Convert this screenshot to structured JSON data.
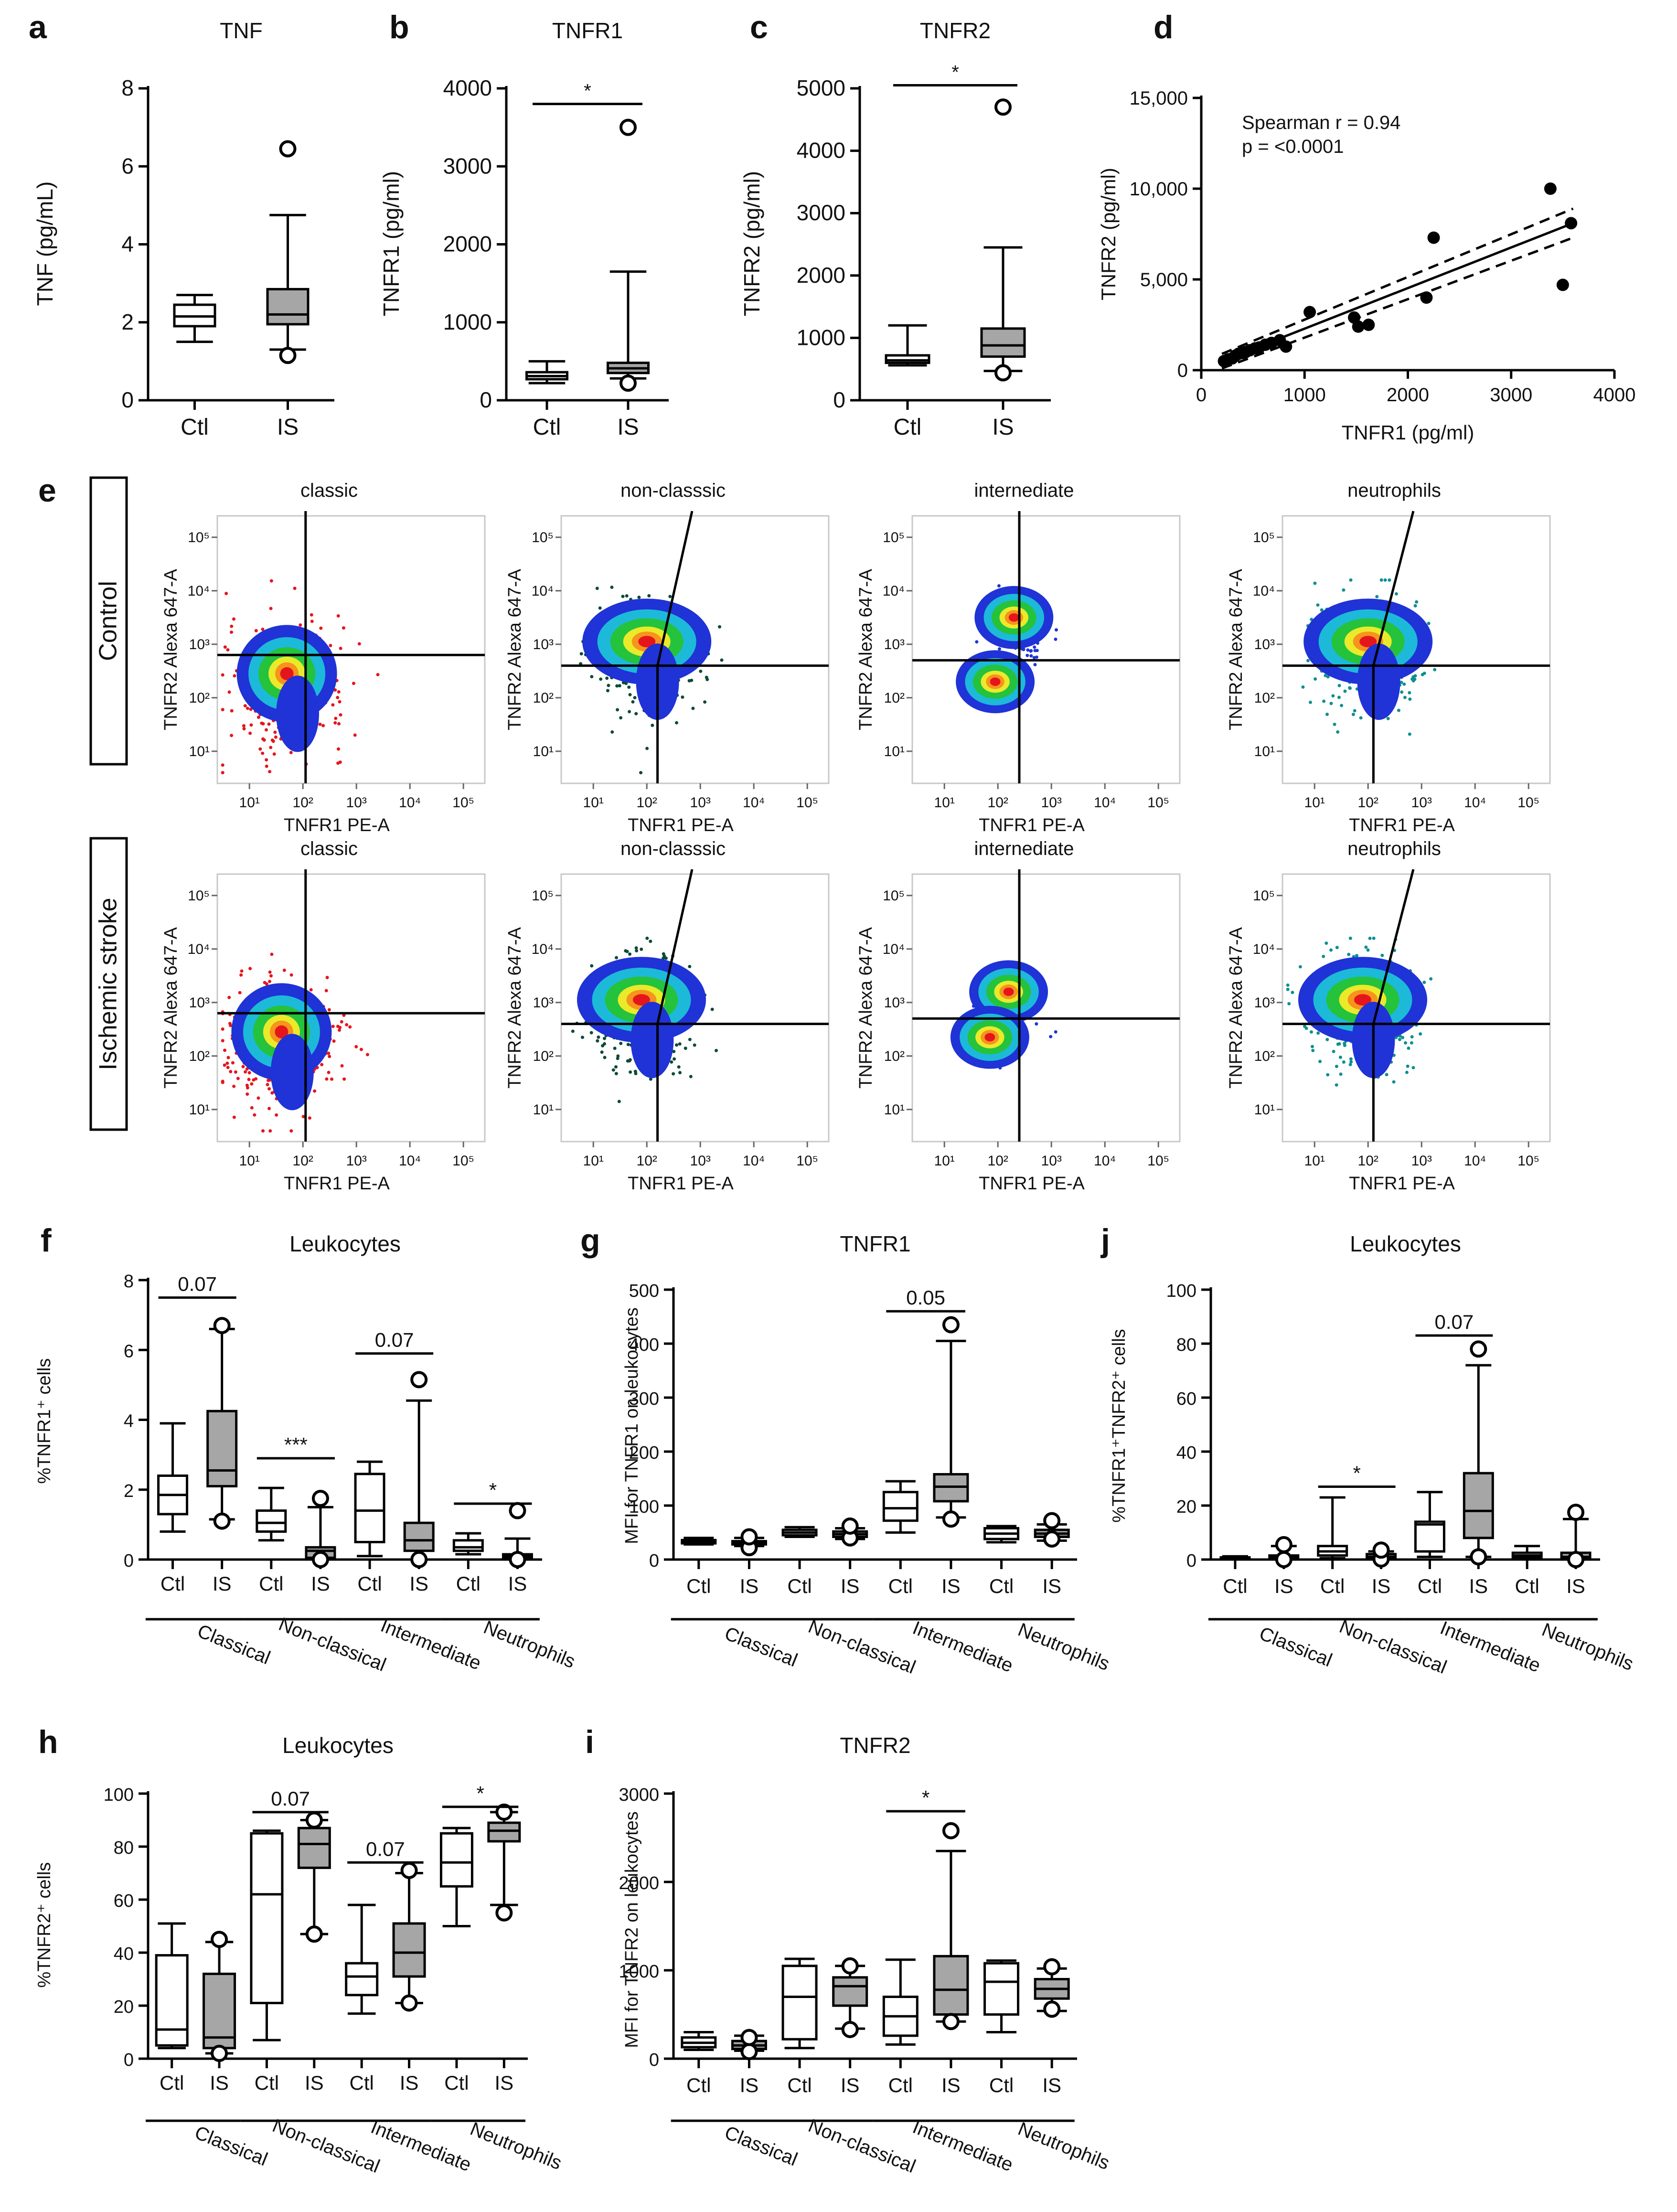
{
  "figure": {
    "colors": {
      "ink": "#000000",
      "grey_box": "#a6a6a6",
      "white_box": "#ffffff",
      "red": "#e4161c",
      "teal": "#0f8f8f",
      "darkgreen": "#0c4a38",
      "blue": "#1f33d6",
      "cyan": "#1db9d9",
      "green": "#25c23c",
      "yellow": "#eaea2a",
      "orange": "#f7941d"
    }
  },
  "chart_data": [
    {
      "id": "a",
      "type": "box",
      "letter": "a",
      "title": "TNF",
      "ylabel": "TNF (pg/mL)",
      "ylim": [
        0,
        8
      ],
      "yticks": [
        "0",
        "2",
        "4",
        "6",
        "8"
      ],
      "categories": [
        "Ctl",
        "IS"
      ],
      "boxes": [
        {
          "name": "Ctl",
          "min": 1.5,
          "q1": 1.9,
          "median": 2.15,
          "q3": 2.45,
          "max": 2.7,
          "fill": "white",
          "outliers": []
        },
        {
          "name": "IS",
          "min": 1.3,
          "q1": 1.95,
          "median": 2.2,
          "q3": 2.85,
          "max": 4.75,
          "fill": "grey",
          "outliers": [
            1.15,
            6.45
          ]
        }
      ]
    },
    {
      "id": "b",
      "type": "box",
      "letter": "b",
      "title": "TNFR1",
      "ylabel": "TNFR1 (pg/ml)",
      "ylim": [
        0,
        4000
      ],
      "yticks": [
        "0",
        "1000",
        "2000",
        "3000",
        "4000"
      ],
      "categories": [
        "Ctl",
        "IS"
      ],
      "sig": [
        {
          "from": 0,
          "to": 1,
          "label": "*",
          "y": 3800
        }
      ],
      "boxes": [
        {
          "name": "Ctl",
          "min": 220,
          "q1": 270,
          "median": 310,
          "q3": 360,
          "max": 500,
          "fill": "white",
          "outliers": []
        },
        {
          "name": "IS",
          "min": 280,
          "q1": 350,
          "median": 410,
          "q3": 480,
          "max": 1650,
          "fill": "grey",
          "outliers": [
            220,
            3500
          ]
        }
      ]
    },
    {
      "id": "c",
      "type": "box",
      "letter": "c",
      "title": "TNFR2",
      "ylabel": "TNFR2 (pg/ml)",
      "ylim": [
        0,
        5000
      ],
      "yticks": [
        "0",
        "1000",
        "2000",
        "3000",
        "4000",
        "5000"
      ],
      "categories": [
        "Ctl",
        "IS"
      ],
      "sig": [
        {
          "from": 0,
          "to": 1,
          "label": "*",
          "y": 5050
        }
      ],
      "boxes": [
        {
          "name": "Ctl",
          "min": 560,
          "q1": 600,
          "median": 640,
          "q3": 720,
          "max": 1200,
          "fill": "white",
          "outliers": []
        },
        {
          "name": "IS",
          "min": 470,
          "q1": 700,
          "median": 880,
          "q3": 1150,
          "max": 2450,
          "fill": "grey",
          "outliers": [
            440,
            4700
          ]
        }
      ]
    },
    {
      "id": "d",
      "type": "scatter",
      "letter": "d",
      "xlabel": "TNFR1 (pg/ml)",
      "ylabel": "TNFR2 (pg/ml)",
      "xlim": [
        0,
        4000
      ],
      "ylim": [
        0,
        15000
      ],
      "xticks": [
        "0",
        "1000",
        "2000",
        "3000",
        "4000"
      ],
      "yticks": [
        "0",
        "5,000",
        "10,000",
        "15,000"
      ],
      "annotation": [
        "Spearman r = 0.94",
        "p = <0.0001"
      ],
      "points": [
        [
          220,
          500
        ],
        [
          260,
          600
        ],
        [
          300,
          650
        ],
        [
          330,
          800
        ],
        [
          360,
          900
        ],
        [
          400,
          950
        ],
        [
          430,
          1000
        ],
        [
          470,
          1100
        ],
        [
          520,
          1200
        ],
        [
          560,
          1250
        ],
        [
          620,
          1400
        ],
        [
          680,
          1500
        ],
        [
          760,
          1650
        ],
        [
          820,
          1300
        ],
        [
          1050,
          3200
        ],
        [
          1480,
          2900
        ],
        [
          1520,
          2400
        ],
        [
          1620,
          2500
        ],
        [
          2180,
          4000
        ],
        [
          2250,
          7300
        ],
        [
          3380,
          10000
        ],
        [
          3500,
          4700
        ],
        [
          3580,
          8100
        ]
      ],
      "fit": {
        "x": [
          200,
          3600
        ],
        "y": [
          500,
          8100
        ]
      },
      "ci_upper": {
        "x": [
          200,
          3600
        ],
        "y": [
          900,
          8900
        ]
      },
      "ci_lower": {
        "x": [
          200,
          3600
        ],
        "y": [
          100,
          7300
        ]
      }
    },
    {
      "id": "f",
      "type": "box",
      "letter": "f",
      "title": "Leukocytes",
      "ylabel": "%TNFR1⁺ cells",
      "ylim": [
        0,
        8
      ],
      "yticks": [
        "0",
        "2",
        "4",
        "6",
        "8"
      ],
      "categories": [
        "Ctl",
        "IS",
        "Ctl",
        "IS",
        "Ctl",
        "IS",
        "Ctl",
        "IS"
      ],
      "groups": [
        "Classical",
        "Non-classical",
        "Intermediate",
        "Neutrophils"
      ],
      "sig": [
        {
          "from": 0,
          "to": 1,
          "label": "0.07",
          "y": 7.5
        },
        {
          "from": 2,
          "to": 3,
          "label": "***",
          "y": 2.9
        },
        {
          "from": 4,
          "to": 5,
          "label": "0.07",
          "y": 5.9
        },
        {
          "from": 6,
          "to": 7,
          "label": "*",
          "y": 1.6
        }
      ],
      "boxes": [
        {
          "min": 0.8,
          "q1": 1.3,
          "median": 1.85,
          "q3": 2.4,
          "max": 3.9,
          "fill": "white",
          "outliers": []
        },
        {
          "min": 1.15,
          "q1": 2.1,
          "median": 2.55,
          "q3": 4.25,
          "max": 6.6,
          "fill": "grey",
          "outliers": [
            1.1,
            6.7
          ]
        },
        {
          "min": 0.55,
          "q1": 0.8,
          "median": 1.05,
          "q3": 1.4,
          "max": 2.05,
          "fill": "white",
          "outliers": []
        },
        {
          "min": 0.0,
          "q1": 0.05,
          "median": 0.25,
          "q3": 0.35,
          "max": 1.5,
          "fill": "grey",
          "outliers": [
            0.0,
            1.75
          ]
        },
        {
          "min": 0.1,
          "q1": 0.5,
          "median": 1.4,
          "q3": 2.45,
          "max": 2.8,
          "fill": "white",
          "outliers": []
        },
        {
          "min": 0.0,
          "q1": 0.25,
          "median": 0.55,
          "q3": 1.05,
          "max": 4.55,
          "fill": "grey",
          "outliers": [
            0.0,
            5.15
          ]
        },
        {
          "min": 0.15,
          "q1": 0.25,
          "median": 0.35,
          "q3": 0.55,
          "max": 0.75,
          "fill": "white",
          "outliers": []
        },
        {
          "min": 0.0,
          "q1": 0.05,
          "median": 0.1,
          "q3": 0.15,
          "max": 0.6,
          "fill": "grey",
          "outliers": [
            0.0,
            1.4
          ]
        }
      ]
    },
    {
      "id": "g",
      "type": "box",
      "letter": "g",
      "title": "TNFR1",
      "ylabel": "MFI for TNFR1 on leukocytes",
      "ylim": [
        0,
        500
      ],
      "yticks": [
        "0",
        "100",
        "200",
        "300",
        "400",
        "500"
      ],
      "categories": [
        "Ctl",
        "IS",
        "Ctl",
        "IS",
        "Ctl",
        "IS",
        "Ctl",
        "IS"
      ],
      "groups": [
        "Classical",
        "Non-classical",
        "Intermediate",
        "Neutrophils"
      ],
      "sig": [
        {
          "from": 4,
          "to": 5,
          "label": "0.05",
          "y": 460
        }
      ],
      "boxes": [
        {
          "min": 28,
          "q1": 30,
          "median": 33,
          "q3": 36,
          "max": 40,
          "fill": "white",
          "outliers": []
        },
        {
          "min": 25,
          "q1": 28,
          "median": 31,
          "q3": 34,
          "max": 40,
          "fill": "grey",
          "outliers": [
            22,
            42
          ]
        },
        {
          "min": 42,
          "q1": 45,
          "median": 50,
          "q3": 55,
          "max": 60,
          "fill": "white",
          "outliers": []
        },
        {
          "min": 38,
          "q1": 42,
          "median": 47,
          "q3": 52,
          "max": 58,
          "fill": "grey",
          "outliers": [
            40,
            62
          ]
        },
        {
          "min": 50,
          "q1": 72,
          "median": 95,
          "q3": 125,
          "max": 145,
          "fill": "white",
          "outliers": []
        },
        {
          "min": 78,
          "q1": 108,
          "median": 135,
          "q3": 158,
          "max": 405,
          "fill": "grey",
          "outliers": [
            75,
            435
          ]
        },
        {
          "min": 32,
          "q1": 38,
          "median": 48,
          "q3": 58,
          "max": 62,
          "fill": "white",
          "outliers": []
        },
        {
          "min": 35,
          "q1": 42,
          "median": 48,
          "q3": 55,
          "max": 65,
          "fill": "grey",
          "outliers": [
            38,
            72
          ]
        }
      ]
    },
    {
      "id": "j",
      "type": "box",
      "letter": "j",
      "title": "Leukocytes",
      "ylabel": "%TNFR1⁺TNFR2⁺ cells",
      "ylim": [
        0,
        100
      ],
      "yticks": [
        "0",
        "20",
        "40",
        "60",
        "80",
        "100"
      ],
      "categories": [
        "Ctl",
        "IS",
        "Ctl",
        "IS",
        "Ctl",
        "IS",
        "Ctl",
        "IS"
      ],
      "groups": [
        "Classical",
        "Non-classical",
        "Intermediate",
        "Neutrophils"
      ],
      "sig": [
        {
          "from": 2,
          "to": 3,
          "label": "*",
          "y": 27
        },
        {
          "from": 4,
          "to": 5,
          "label": "0.07",
          "y": 83
        }
      ],
      "boxes": [
        {
          "min": 0,
          "q1": 0.2,
          "median": 0.5,
          "q3": 0.8,
          "max": 1.2,
          "fill": "white",
          "outliers": []
        },
        {
          "min": 0,
          "q1": 0.3,
          "median": 0.7,
          "q3": 1.5,
          "max": 5,
          "fill": "grey",
          "outliers": [
            0,
            5.5
          ]
        },
        {
          "min": 0.5,
          "q1": 1.5,
          "median": 3,
          "q3": 5,
          "max": 23,
          "fill": "white",
          "outliers": []
        },
        {
          "min": 0,
          "q1": 0.5,
          "median": 1,
          "q3": 2,
          "max": 3,
          "fill": "grey",
          "outliers": [
            0.2,
            3.5
          ]
        },
        {
          "min": 1,
          "q1": 3,
          "median": 13,
          "q3": 14,
          "max": 25,
          "fill": "white",
          "outliers": []
        },
        {
          "min": 1,
          "q1": 8,
          "median": 18,
          "q3": 32,
          "max": 72,
          "fill": "grey",
          "outliers": [
            1,
            78
          ]
        },
        {
          "min": 0.3,
          "q1": 0.8,
          "median": 1.5,
          "q3": 2.5,
          "max": 5,
          "fill": "white",
          "outliers": []
        },
        {
          "min": 0,
          "q1": 0.5,
          "median": 1,
          "q3": 2.5,
          "max": 15,
          "fill": "grey",
          "outliers": [
            0,
            17.5
          ]
        }
      ]
    },
    {
      "id": "h",
      "type": "box",
      "letter": "h",
      "title": "Leukocytes",
      "ylabel": "%TNFR2⁺ cells",
      "ylim": [
        0,
        100
      ],
      "yticks": [
        "0",
        "20",
        "40",
        "60",
        "80",
        "100"
      ],
      "categories": [
        "Ctl",
        "IS",
        "Ctl",
        "IS",
        "Ctl",
        "IS",
        "Ctl",
        "IS"
      ],
      "groups": [
        "Classical",
        "Non-classical",
        "Intermediate",
        "Neutrophils"
      ],
      "sig": [
        {
          "from": 2,
          "to": 3,
          "label": "0.07",
          "y": 93
        },
        {
          "from": 4,
          "to": 5,
          "label": "0.07",
          "y": 74
        },
        {
          "from": 6,
          "to": 7,
          "label": "*",
          "y": 95
        }
      ],
      "boxes": [
        {
          "min": 4,
          "q1": 5,
          "median": 11,
          "q3": 39,
          "max": 51,
          "fill": "white",
          "outliers": []
        },
        {
          "min": 2,
          "q1": 4,
          "median": 8,
          "q3": 32,
          "max": 44,
          "fill": "grey",
          "outliers": [
            2,
            45
          ]
        },
        {
          "min": 7,
          "q1": 21,
          "median": 62,
          "q3": 85,
          "max": 86,
          "fill": "white",
          "outliers": []
        },
        {
          "min": 47,
          "q1": 72,
          "median": 81,
          "q3": 87,
          "max": 90,
          "fill": "grey",
          "outliers": [
            47,
            90
          ]
        },
        {
          "min": 17,
          "q1": 24,
          "median": 31,
          "q3": 36,
          "max": 58,
          "fill": "white",
          "outliers": []
        },
        {
          "min": 21,
          "q1": 31,
          "median": 40,
          "q3": 51,
          "max": 70,
          "fill": "grey",
          "outliers": [
            21,
            71
          ]
        },
        {
          "min": 50,
          "q1": 65,
          "median": 74,
          "q3": 85,
          "max": 87,
          "fill": "white",
          "outliers": []
        },
        {
          "min": 58,
          "q1": 82,
          "median": 86,
          "q3": 89,
          "max": 93,
          "fill": "grey",
          "outliers": [
            55,
            93
          ]
        }
      ]
    },
    {
      "id": "i",
      "type": "box",
      "letter": "i",
      "title": "TNFR2",
      "ylabel": "MFI for TNFR2 on leukocytes",
      "ylim": [
        0,
        3000
      ],
      "yticks": [
        "0",
        "1000",
        "2000",
        "3000"
      ],
      "categories": [
        "Ctl",
        "IS",
        "Ctl",
        "IS",
        "Ctl",
        "IS",
        "Ctl",
        "IS"
      ],
      "groups": [
        "Classical",
        "Non-classical",
        "Intermediate",
        "Neutrophils"
      ],
      "sig": [
        {
          "from": 4,
          "to": 5,
          "label": "*",
          "y": 2800
        }
      ],
      "boxes": [
        {
          "min": 100,
          "q1": 130,
          "median": 180,
          "q3": 240,
          "max": 300,
          "fill": "white",
          "outliers": []
        },
        {
          "min": 90,
          "q1": 110,
          "median": 150,
          "q3": 200,
          "max": 260,
          "fill": "grey",
          "outliers": [
            80,
            240
          ]
        },
        {
          "min": 120,
          "q1": 220,
          "median": 700,
          "q3": 1050,
          "max": 1130,
          "fill": "white",
          "outliers": []
        },
        {
          "min": 340,
          "q1": 600,
          "median": 820,
          "q3": 920,
          "max": 1050,
          "fill": "grey",
          "outliers": [
            330,
            1050
          ]
        },
        {
          "min": 160,
          "q1": 260,
          "median": 480,
          "q3": 700,
          "max": 1120,
          "fill": "white",
          "outliers": []
        },
        {
          "min": 420,
          "q1": 500,
          "median": 780,
          "q3": 1160,
          "max": 2350,
          "fill": "grey",
          "outliers": [
            420,
            2580
          ]
        },
        {
          "min": 300,
          "q1": 500,
          "median": 870,
          "q3": 1080,
          "max": 1110,
          "fill": "white",
          "outliers": []
        },
        {
          "min": 540,
          "q1": 680,
          "median": 790,
          "q3": 900,
          "max": 1020,
          "fill": "grey",
          "outliers": [
            560,
            1040
          ]
        }
      ]
    },
    {
      "id": "e",
      "type": "flow-cytometry",
      "letter": "e",
      "rows": [
        "Control",
        "Ischemic stroke"
      ],
      "columns": [
        "classic",
        "non-classsic",
        "internediate",
        "neutrophils"
      ],
      "xlabel": "TNFR1 PE-A",
      "ylabel": "TNFR2 Alexa 647-A",
      "xticks": [
        "10¹",
        "10²",
        "10³",
        "10⁴",
        "10⁵"
      ],
      "yticks": [
        "10¹",
        "10²",
        "10³",
        "10⁴",
        "10⁵"
      ],
      "decades": [
        1,
        2,
        3,
        4,
        5
      ],
      "xlim": [
        0.4,
        5.4
      ],
      "ylim": [
        0.4,
        5.4
      ]
    }
  ]
}
